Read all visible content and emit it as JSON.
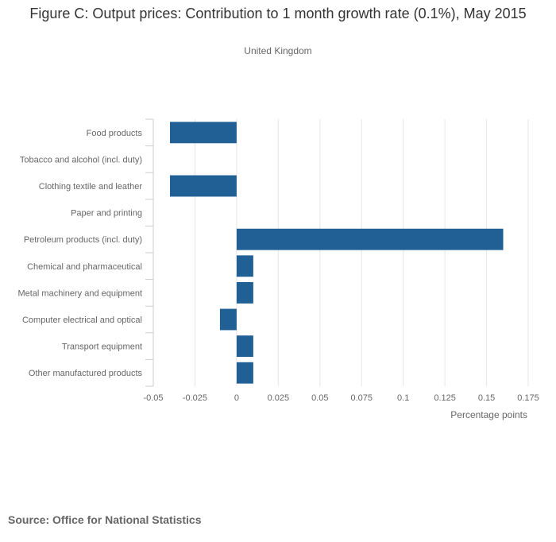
{
  "chart_data": {
    "type": "bar",
    "orientation": "horizontal",
    "title": "Figure C: Output prices: Contribution to 1 month growth rate (0.1%), May 2015",
    "subtitle": "United Kingdom",
    "xlabel": "Percentage points",
    "ylabel": "",
    "xlim": [
      -0.05,
      0.175
    ],
    "xticks": [
      -0.05,
      -0.025,
      0,
      0.025,
      0.05,
      0.075,
      0.1,
      0.125,
      0.15,
      0.175
    ],
    "xtick_labels": [
      "-0.05",
      "-0.025",
      "0",
      "0.025",
      "0.05",
      "0.075",
      "0.1",
      "0.125",
      "0.15",
      "0.175"
    ],
    "grid": true,
    "categories": [
      "Food products",
      "Tobacco and alcohol (incl. duty)",
      "Clothing textile and leather",
      "Paper and printing",
      "Petroleum products (incl. duty)",
      "Chemical and pharmaceutical",
      "Metal machinery and equipment",
      "Computer electrical and optical",
      "Transport equipment",
      "Other manufactured products"
    ],
    "values": [
      -0.04,
      0,
      -0.04,
      0,
      0.16,
      0.01,
      0.01,
      -0.01,
      0.01,
      0.01
    ],
    "bar_color": "#206095",
    "source": "Source: Office for National Statistics"
  }
}
